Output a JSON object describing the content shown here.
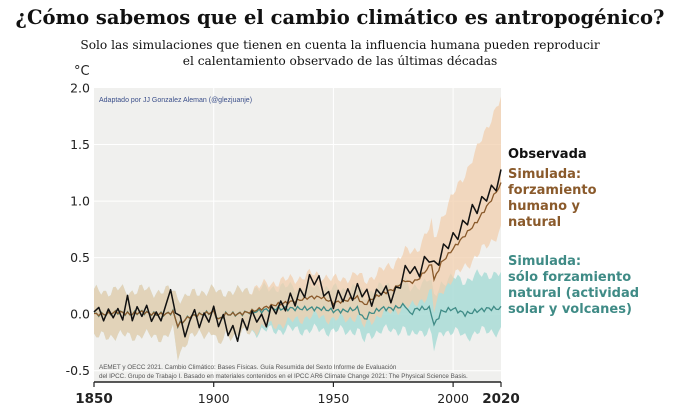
{
  "title": "¿Cómo sabemos que el cambio climático es antropogénico?",
  "subtitle_line1": "Solo las simulaciones que tienen en cuenta la influencia humana pueden reproducir",
  "subtitle_line2": "el calentamiento observado de las últimas décadas",
  "credit": "Adaptado por JJ Gonzalez Aleman (@glezjuanje)",
  "source_line1": "AEMET y OECC 2021. Cambio Climático: Bases Físicas. Guía Resumida del Sexto Informe de Evaluación",
  "source_line2": "del IPCC. Grupo de Trabajo I. Basado en materiales contenidos en el IPCC AR6 Climate Change 2021: The Physical Science Basis.",
  "colors": {
    "observed": "#111111",
    "human_natural": "#8a5a2b",
    "human_natural_band": "#f2cfad",
    "natural": "#3f8b86",
    "natural_band": "#a9dcd6",
    "plot_bg": "#f0f0ee",
    "credit": "#3b4f8a"
  },
  "chart_data": {
    "type": "line",
    "title": "¿Cómo sabemos que el cambio climático es antropogénico?",
    "ylabel": "°C",
    "xlabel": "",
    "xlim": [
      1850,
      2020
    ],
    "ylim": [
      -0.6,
      2.0
    ],
    "x_ticks": [
      {
        "value": 1850,
        "label": "1850"
      },
      {
        "value": 1900,
        "label": "1900"
      },
      {
        "value": 1950,
        "label": "1950"
      },
      {
        "value": 2000,
        "label": "2000"
      },
      {
        "value": 2020,
        "label": "2020"
      }
    ],
    "y_ticks": [
      {
        "value": 2.0,
        "label": "2.0"
      },
      {
        "value": 1.5,
        "label": "1.5"
      },
      {
        "value": 1.0,
        "label": "1.0"
      },
      {
        "value": 0.5,
        "label": "0.5"
      },
      {
        "value": 0.0,
        "label": "0.0"
      },
      {
        "value": -0.5,
        "label": "-0.5"
      }
    ],
    "grid": true,
    "legend": [
      {
        "key": "observed",
        "lines": [
          "Observada"
        ]
      },
      {
        "key": "human_natural",
        "lines": [
          "Simulada:",
          "forzamiento",
          "humano y",
          "natural"
        ]
      },
      {
        "key": "natural",
        "lines": [
          "Simulada:",
          "sólo forzamiento",
          "natural (actividad",
          "solar y volcanes)"
        ]
      }
    ],
    "x": [
      1850,
      1855,
      1860,
      1865,
      1870,
      1875,
      1880,
      1883,
      1885,
      1888,
      1890,
      1895,
      1900,
      1902,
      1905,
      1910,
      1915,
      1920,
      1925,
      1930,
      1935,
      1940,
      1945,
      1950,
      1955,
      1960,
      1963,
      1965,
      1970,
      1975,
      1980,
      1982,
      1985,
      1990,
      1991,
      1992,
      1995,
      2000,
      2005,
      2010,
      2015,
      2020
    ],
    "series": [
      {
        "name": "Observada",
        "key": "observed",
        "values": [
          0.02,
          -0.03,
          0.0,
          0.02,
          0.03,
          -0.05,
          0.05,
          0.15,
          -0.05,
          -0.12,
          -0.1,
          -0.05,
          0.0,
          -0.08,
          -0.1,
          -0.2,
          -0.05,
          -0.05,
          0.02,
          0.08,
          0.12,
          0.3,
          0.25,
          0.1,
          0.15,
          0.22,
          0.18,
          0.1,
          0.2,
          0.15,
          0.35,
          0.38,
          0.35,
          0.5,
          0.55,
          0.38,
          0.55,
          0.65,
          0.8,
          0.95,
          1.05,
          1.2
        ]
      },
      {
        "name": "Simulada: forzamiento humano y natural",
        "key": "human_natural",
        "values": [
          0.0,
          0.0,
          0.02,
          0.0,
          0.02,
          0.0,
          0.0,
          0.02,
          -0.1,
          -0.05,
          -0.02,
          0.0,
          0.02,
          -0.05,
          0.0,
          0.0,
          0.02,
          0.05,
          0.08,
          0.1,
          0.12,
          0.15,
          0.15,
          0.1,
          0.12,
          0.15,
          0.08,
          0.12,
          0.18,
          0.22,
          0.3,
          0.28,
          0.3,
          0.42,
          0.45,
          0.3,
          0.45,
          0.58,
          0.7,
          0.82,
          0.98,
          1.15
        ],
        "lower": [
          -0.2,
          -0.2,
          -0.18,
          -0.2,
          -0.18,
          -0.2,
          -0.2,
          -0.15,
          -0.38,
          -0.25,
          -0.2,
          -0.18,
          -0.15,
          -0.3,
          -0.18,
          -0.18,
          -0.16,
          -0.12,
          -0.1,
          -0.08,
          -0.05,
          -0.02,
          -0.02,
          -0.05,
          -0.04,
          -0.02,
          -0.12,
          -0.06,
          0.0,
          0.02,
          0.08,
          0.05,
          0.1,
          0.18,
          0.2,
          0.02,
          0.2,
          0.32,
          0.42,
          0.52,
          0.62,
          0.75
        ],
        "upper": [
          0.2,
          0.2,
          0.22,
          0.2,
          0.22,
          0.2,
          0.2,
          0.22,
          0.15,
          0.15,
          0.17,
          0.2,
          0.22,
          0.18,
          0.2,
          0.2,
          0.22,
          0.25,
          0.28,
          0.3,
          0.32,
          0.35,
          0.35,
          0.3,
          0.32,
          0.35,
          0.3,
          0.32,
          0.38,
          0.45,
          0.55,
          0.55,
          0.58,
          0.75,
          0.8,
          0.65,
          0.85,
          1.05,
          1.25,
          1.45,
          1.7,
          1.9
        ]
      },
      {
        "name": "Simulada: sólo forzamiento natural",
        "key": "natural",
        "values": [
          0.0,
          0.0,
          0.02,
          0.0,
          0.02,
          0.0,
          0.0,
          0.02,
          -0.1,
          -0.05,
          -0.02,
          0.0,
          0.02,
          -0.05,
          0.0,
          0.0,
          0.02,
          0.03,
          0.05,
          0.05,
          0.05,
          0.05,
          0.05,
          0.03,
          0.03,
          0.05,
          -0.05,
          0.0,
          0.05,
          0.05,
          0.08,
          0.0,
          0.05,
          0.05,
          0.0,
          -0.1,
          0.02,
          0.05,
          0.0,
          0.03,
          0.05,
          0.05
        ],
        "lower": [
          -0.2,
          -0.2,
          -0.18,
          -0.2,
          -0.18,
          -0.2,
          -0.2,
          -0.15,
          -0.38,
          -0.25,
          -0.2,
          -0.18,
          -0.15,
          -0.3,
          -0.18,
          -0.18,
          -0.16,
          -0.15,
          -0.14,
          -0.14,
          -0.14,
          -0.14,
          -0.14,
          -0.15,
          -0.15,
          -0.14,
          -0.25,
          -0.18,
          -0.14,
          -0.15,
          -0.12,
          -0.22,
          -0.15,
          -0.15,
          -0.2,
          -0.32,
          -0.15,
          -0.15,
          -0.2,
          -0.16,
          -0.15,
          -0.15
        ],
        "upper": [
          0.2,
          0.2,
          0.22,
          0.2,
          0.22,
          0.2,
          0.2,
          0.22,
          0.15,
          0.15,
          0.17,
          0.2,
          0.22,
          0.18,
          0.2,
          0.2,
          0.22,
          0.22,
          0.24,
          0.24,
          0.24,
          0.24,
          0.24,
          0.22,
          0.22,
          0.24,
          0.15,
          0.2,
          0.24,
          0.25,
          0.28,
          0.22,
          0.26,
          0.3,
          0.25,
          0.15,
          0.28,
          0.32,
          0.3,
          0.34,
          0.36,
          0.35
        ]
      }
    ],
    "observed_noise": [
      0.0,
      0.06,
      -0.04,
      0.07,
      -0.02,
      0.05,
      -0.06,
      0.15,
      -0.08,
      0.04,
      -0.05,
      0.08,
      -0.03,
      0.05,
      -0.07,
      0.03,
      0.1,
      -0.04,
      0.06,
      -0.08,
      0.04,
      0.12,
      -0.06,
      0.05,
      -0.05,
      0.07,
      -0.03,
      0.09,
      -0.07,
      0.06,
      -0.04,
      0.1,
      -0.06,
      0.08,
      -0.02,
      0.05,
      -0.09,
      0.07,
      -0.03,
      0.06,
      -0.05,
      0.09,
      -0.04,
      0.07,
      -0.08,
      0.05,
      -0.02,
      0.08,
      -0.06,
      0.04,
      -0.05,
      0.09,
      -0.03,
      0.06,
      -0.07,
      0.05,
      -0.04,
      0.08,
      -0.05,
      0.06,
      -0.03,
      0.07,
      -0.06,
      0.05,
      -0.04,
      0.08,
      -0.02,
      0.06,
      -0.05,
      0.07,
      -0.04,
      0.09,
      -0.06,
      0.05,
      -0.03,
      0.07,
      -0.05,
      0.06,
      -0.04,
      0.08,
      -0.06,
      0.05,
      -0.03,
      0.06,
      -0.05,
      0.08
    ]
  }
}
